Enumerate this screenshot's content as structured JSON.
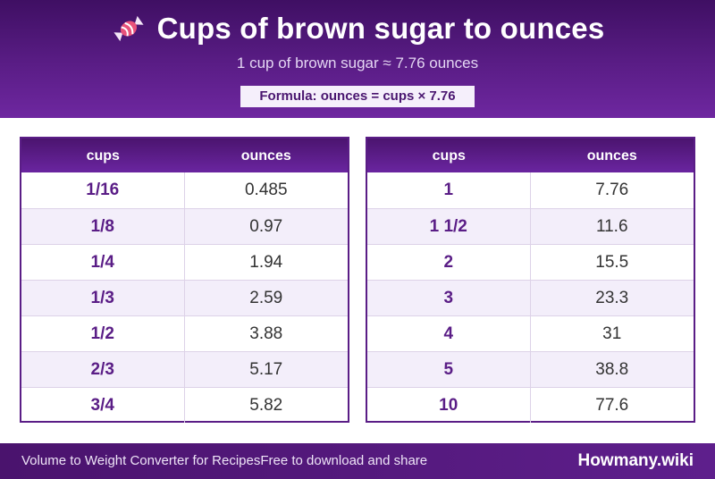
{
  "header": {
    "icon": "candy-icon",
    "title": "Cups of brown sugar to ounces",
    "subtitle": "1 cup of brown sugar ≈ 7.76 ounces",
    "formula": "Formula: ounces = cups × 7.76"
  },
  "left_table": {
    "col_cups": "cups",
    "col_ounces": "ounces",
    "rows": [
      {
        "cups": "1/16",
        "ounces": "0.485"
      },
      {
        "cups": "1/8",
        "ounces": "0.97"
      },
      {
        "cups": "1/4",
        "ounces": "1.94"
      },
      {
        "cups": "1/3",
        "ounces": "2.59"
      },
      {
        "cups": "1/2",
        "ounces": "3.88"
      },
      {
        "cups": "2/3",
        "ounces": "5.17"
      },
      {
        "cups": "3/4",
        "ounces": "5.82"
      }
    ]
  },
  "right_table": {
    "col_cups": "cups",
    "col_ounces": "ounces",
    "rows": [
      {
        "cups": "1",
        "ounces": "7.76"
      },
      {
        "cups": "1 1/2",
        "ounces": "11.6"
      },
      {
        "cups": "2",
        "ounces": "15.5"
      },
      {
        "cups": "3",
        "ounces": "23.3"
      },
      {
        "cups": "4",
        "ounces": "31"
      },
      {
        "cups": "5",
        "ounces": "38.8"
      },
      {
        "cups": "10",
        "ounces": "77.6"
      }
    ]
  },
  "footer": {
    "left_text": "Volume to Weight Converter for RecipesFree to download and share",
    "brand": "Howmany.wiki"
  },
  "colors": {
    "brand_purple": "#5a1d86",
    "header_dark": "#3f0f63",
    "row_alt": "#f3eefa"
  }
}
